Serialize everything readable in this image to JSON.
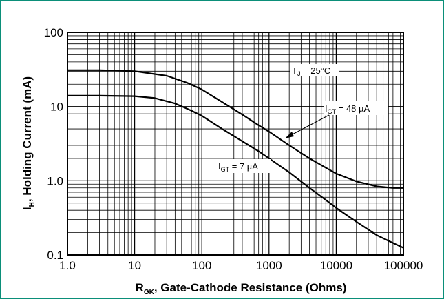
{
  "frame": {
    "border_color": "#0b8f79"
  },
  "chart_data": {
    "type": "line",
    "x_scale": "log",
    "y_scale": "log",
    "xlim": [
      1,
      100000
    ],
    "ylim": [
      0.1,
      100
    ],
    "grid": true,
    "xlabel": {
      "main": "R",
      "sub": "GK",
      "rest": ", Gate-Cathode Resistance (Ohms)"
    },
    "ylabel": {
      "main": "I",
      "sub": "H",
      "rest": ", Holding Current (mA)"
    },
    "x_ticks": [
      {
        "value": 1,
        "label": "1.0"
      },
      {
        "value": 10,
        "label": "10"
      },
      {
        "value": 100,
        "label": "100"
      },
      {
        "value": 1000,
        "label": "1000"
      },
      {
        "value": 10000,
        "label": "10000"
      },
      {
        "value": 100000,
        "label": "100000"
      }
    ],
    "y_ticks": [
      {
        "value": 0.1,
        "label": "0.1"
      },
      {
        "value": 1,
        "label": "1.0"
      },
      {
        "value": 10,
        "label": "10"
      },
      {
        "value": 100,
        "label": "100"
      }
    ],
    "series": [
      {
        "name": "IGT = 48 µA",
        "points": [
          [
            1,
            31
          ],
          [
            3,
            31
          ],
          [
            10,
            30
          ],
          [
            30,
            26
          ],
          [
            60,
            21
          ],
          [
            100,
            17
          ],
          [
            200,
            11.5
          ],
          [
            400,
            7.8
          ],
          [
            700,
            5.6
          ],
          [
            1000,
            4.6
          ],
          [
            2000,
            3
          ],
          [
            4000,
            2
          ],
          [
            7000,
            1.5
          ],
          [
            10000,
            1.25
          ],
          [
            20000,
            0.98
          ],
          [
            40000,
            0.84
          ],
          [
            70000,
            0.8
          ],
          [
            120000,
            0.8
          ]
        ]
      },
      {
        "name": "IGT = 7 µA",
        "points": [
          [
            1,
            14
          ],
          [
            3,
            14
          ],
          [
            10,
            13.8
          ],
          [
            20,
            13
          ],
          [
            40,
            11
          ],
          [
            70,
            8.8
          ],
          [
            100,
            7.5
          ],
          [
            200,
            5
          ],
          [
            400,
            3.4
          ],
          [
            700,
            2.5
          ],
          [
            1000,
            2
          ],
          [
            2000,
            1.3
          ],
          [
            4000,
            0.8
          ],
          [
            7000,
            0.55
          ],
          [
            10000,
            0.43
          ],
          [
            20000,
            0.28
          ],
          [
            40000,
            0.185
          ],
          [
            70000,
            0.145
          ],
          [
            120000,
            0.125
          ]
        ]
      }
    ],
    "annotations": {
      "tj": {
        "main": "T",
        "sub": "J",
        "rest": " = 25°C"
      },
      "igt48": {
        "main": "I",
        "sub": "GT",
        "rest": " = 48 µA"
      },
      "igt7": {
        "main": "I",
        "sub": "GT",
        "rest": " = 7 µA"
      }
    }
  }
}
